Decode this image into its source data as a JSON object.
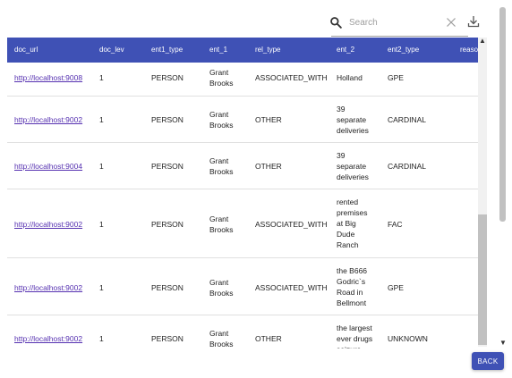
{
  "toolbar": {
    "search_placeholder": "Search",
    "search_icon": "search-icon",
    "clear_icon": "close-icon",
    "download_icon": "download-icon"
  },
  "table": {
    "columns": [
      "doc_url",
      "doc_lev",
      "ent1_type",
      "ent_1",
      "rel_type",
      "ent_2",
      "ent2_type",
      "reason"
    ],
    "rows": [
      {
        "doc_url": "http://localhost:9008",
        "doc_lev": "1",
        "ent1_type": "PERSON",
        "ent_1": [
          "Grant",
          "Brooks"
        ],
        "rel_type": "ASSOCIATED_WITH",
        "ent_2": [
          "Holland"
        ],
        "ent2_type": "GPE"
      },
      {
        "doc_url": "http://localhost:9002",
        "doc_lev": "1",
        "ent1_type": "PERSON",
        "ent_1": [
          "Grant",
          "Brooks"
        ],
        "rel_type": "OTHER",
        "ent_2": [
          "39",
          "separate",
          "deliveries"
        ],
        "ent2_type": "CARDINAL"
      },
      {
        "doc_url": "http://localhost:9004",
        "doc_lev": "1",
        "ent1_type": "PERSON",
        "ent_1": [
          "Grant",
          "Brooks"
        ],
        "rel_type": "OTHER",
        "ent_2": [
          "39",
          "separate",
          "deliveries"
        ],
        "ent2_type": "CARDINAL"
      },
      {
        "doc_url": "http://localhost:9002",
        "doc_lev": "1",
        "ent1_type": "PERSON",
        "ent_1": [
          "Grant",
          "Brooks"
        ],
        "rel_type": "ASSOCIATED_WITH",
        "ent_2": [
          "rented",
          "premises",
          "at Big",
          "Dude",
          "Ranch"
        ],
        "ent2_type": "FAC"
      },
      {
        "doc_url": "http://localhost:9002",
        "doc_lev": "1",
        "ent1_type": "PERSON",
        "ent_1": [
          "Grant",
          "Brooks"
        ],
        "rel_type": "ASSOCIATED_WITH",
        "ent_2": [
          "the B666",
          "Godric`s",
          "Road in",
          "Bellmont"
        ],
        "ent2_type": "GPE"
      },
      {
        "doc_url": "http://localhost:9002",
        "doc_lev": "1",
        "ent1_type": "PERSON",
        "ent_1": [
          "Grant",
          "Brooks"
        ],
        "rel_type": "OTHER",
        "ent_2": [
          "the largest",
          "ever drugs",
          "seizure"
        ],
        "ent2_type": "UNKNOWN"
      }
    ]
  },
  "footer": {
    "back_label": "BACK"
  },
  "colors": {
    "header_bg": "#3f51b5",
    "button_bg": "#3f51b5",
    "link": "#5530b0"
  }
}
